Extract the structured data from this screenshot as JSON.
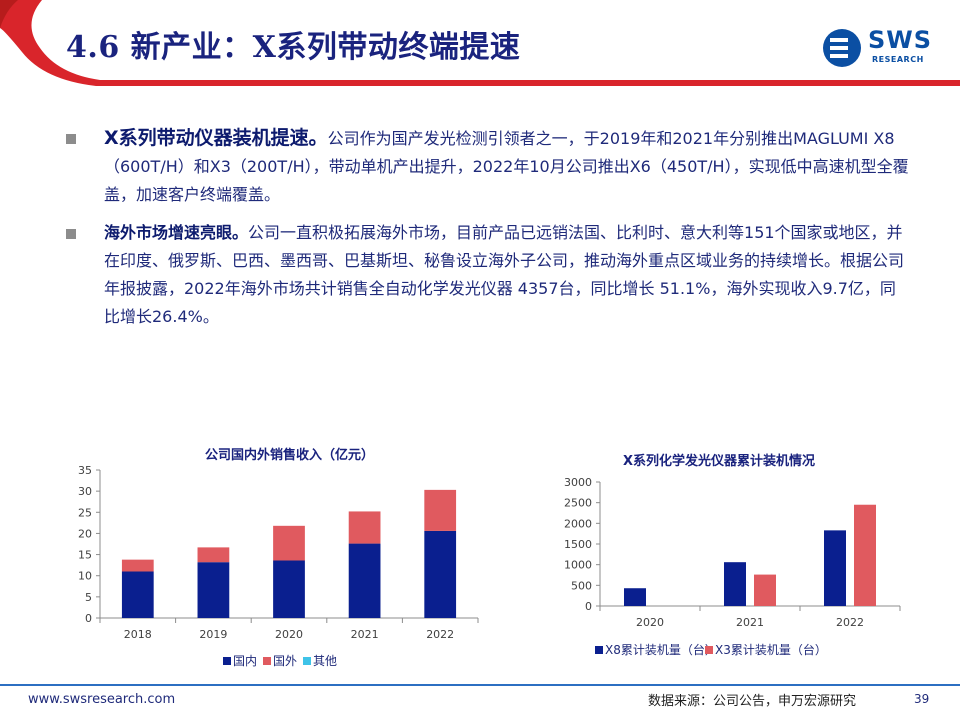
{
  "header": {
    "title": "4.6 新产业：X系列带动终端提速",
    "logo_text": "SWS",
    "logo_sub": "RESEARCH"
  },
  "bullets": [
    {
      "lead": "X系列带动仪器装机提速。",
      "body": "公司作为国产发光检测引领者之一，于2019年和2021年分别推出MAGLUMI  X8（600T/H）和X3（200T/H），带动单机产出提升，2022年10月公司推出X6（450T/H），实现低中高速机型全覆盖，加速客户终端覆盖。"
    },
    {
      "lead": "海外市场增速亮眼。",
      "body": "公司一直积极拓展海外市场，目前产品已远销法国、比利时、意大利等151个国家或地区，并在印度、俄罗斯、巴西、墨西哥、巴基斯坦、秘鲁设立海外子公司，推动海外重点区域业务的持续增长。根据公司年报披露，2022年海外市场共计销售全自动化学发光仪器 4357台，同比增长 51.1%，海外实现收入9.7亿，同比增长26.4%。"
    }
  ],
  "chart_data": [
    {
      "type": "bar",
      "stacked": true,
      "title": "公司国内外销售收入（亿元）",
      "categories": [
        "2018",
        "2019",
        "2020",
        "2021",
        "2022"
      ],
      "series": [
        {
          "name": "国内",
          "color": "#0a1f8f",
          "values": [
            11,
            13.2,
            13.6,
            17.6,
            20.6
          ]
        },
        {
          "name": "国外",
          "color": "#e05a5f",
          "values": [
            2.8,
            3.5,
            8.2,
            7.6,
            9.7
          ]
        },
        {
          "name": "其他",
          "color": "#3fc3e8",
          "values": [
            0,
            0,
            0,
            0,
            0
          ]
        }
      ],
      "ylim": [
        0,
        35
      ],
      "yticks": [
        "0",
        "5",
        "10",
        "15",
        "20",
        "25",
        "30",
        "35"
      ],
      "legend": "bottom"
    },
    {
      "type": "bar",
      "stacked": false,
      "title": "X系列化学发光仪器累计装机情况",
      "categories": [
        "2020",
        "2021",
        "2022"
      ],
      "series": [
        {
          "name": "X8累计装机量（台）",
          "color": "#0a1f8f",
          "values": [
            430,
            1060,
            1830
          ]
        },
        {
          "name": "X3累计装机量（台）",
          "color": "#e05a5f",
          "values": [
            0,
            760,
            2450
          ]
        }
      ],
      "ylim": [
        0,
        3000
      ],
      "yticks": [
        "0",
        "500",
        "1000",
        "1500",
        "2000",
        "2500",
        "3000"
      ],
      "legend": "bottom"
    }
  ],
  "footer": {
    "url": "www.swsresearch.com",
    "source": "数据来源：公司公告，申万宏源研究",
    "page": "39"
  },
  "colors": {
    "header_red": "#d9252b",
    "title_navy": "#1a237e",
    "footer_blue": "#2c6fc2"
  }
}
